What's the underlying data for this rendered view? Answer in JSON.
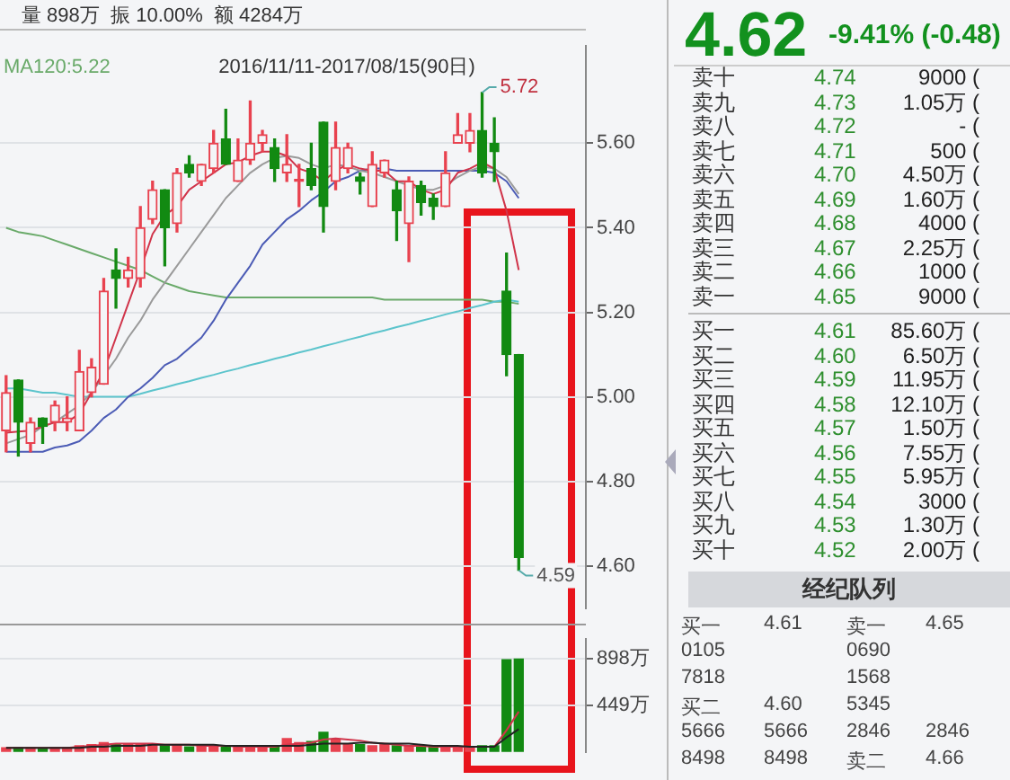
{
  "chart_data": [
    {
      "type": "candlestick",
      "title": "2016/11/11-2017/08/15(90日)",
      "annotations": [
        "量 898万  振 10.00%  额 4284万",
        "5.72",
        "4.59"
      ],
      "categories": [
        null,
        null,
        null,
        null,
        null,
        null,
        null,
        null,
        null,
        null,
        null,
        null,
        null,
        null,
        null,
        null,
        null,
        null,
        null,
        null,
        null,
        null,
        null,
        null,
        null,
        null,
        null,
        null,
        null,
        null,
        null,
        null,
        null,
        null,
        null,
        null,
        null,
        null,
        null,
        null,
        null,
        null,
        null,
        null,
        null,
        null,
        null,
        null
      ],
      "ohlc": [
        [
          4.92,
          5.05,
          4.87,
          5.01
        ],
        [
          5.04,
          5.04,
          4.86,
          4.94
        ],
        [
          4.89,
          4.95,
          4.87,
          4.94
        ],
        [
          4.95,
          4.95,
          4.89,
          4.93
        ],
        [
          4.94,
          4.99,
          4.92,
          4.98
        ],
        [
          4.94,
          5.0,
          4.92,
          4.95
        ],
        [
          4.92,
          5.11,
          4.92,
          5.06
        ],
        [
          5.01,
          5.09,
          5.0,
          5.07
        ],
        [
          5.03,
          5.28,
          5.03,
          5.25
        ],
        [
          5.3,
          5.35,
          5.21,
          5.28
        ],
        [
          5.28,
          5.33,
          5.26,
          5.3
        ],
        [
          5.28,
          5.45,
          5.26,
          5.4
        ],
        [
          5.42,
          5.51,
          5.41,
          5.49
        ],
        [
          5.49,
          5.49,
          5.31,
          5.4
        ],
        [
          5.41,
          5.54,
          5.39,
          5.53
        ],
        [
          5.55,
          5.57,
          5.52,
          5.53
        ],
        [
          5.51,
          5.55,
          5.5,
          5.55
        ],
        [
          5.54,
          5.63,
          5.53,
          5.6
        ],
        [
          5.61,
          5.68,
          5.55,
          5.55
        ],
        [
          5.51,
          5.61,
          5.51,
          5.56
        ],
        [
          5.56,
          5.7,
          5.55,
          5.6
        ],
        [
          5.6,
          5.63,
          5.58,
          5.62
        ],
        [
          5.59,
          5.61,
          5.51,
          5.54
        ],
        [
          5.53,
          5.62,
          5.51,
          5.55
        ],
        [
          5.51,
          5.55,
          5.45,
          5.51
        ],
        [
          5.54,
          5.6,
          5.49,
          5.5
        ],
        [
          5.65,
          5.65,
          5.39,
          5.45
        ],
        [
          5.51,
          5.65,
          5.49,
          5.59
        ],
        [
          5.54,
          5.6,
          5.53,
          5.59
        ],
        [
          5.52,
          5.53,
          5.48,
          5.51
        ],
        [
          5.45,
          5.58,
          5.45,
          5.55
        ],
        [
          5.53,
          5.56,
          5.52,
          5.56
        ],
        [
          5.49,
          5.51,
          5.37,
          5.44
        ],
        [
          5.41,
          5.52,
          5.32,
          5.51
        ],
        [
          5.5,
          5.51,
          5.43,
          5.46
        ],
        [
          5.47,
          5.48,
          5.42,
          5.45
        ],
        [
          5.45,
          5.58,
          5.45,
          5.53
        ],
        [
          5.6,
          5.67,
          5.6,
          5.62
        ],
        [
          5.6,
          5.67,
          5.58,
          5.63
        ],
        [
          5.63,
          5.72,
          5.52,
          5.53
        ],
        [
          5.6,
          5.66,
          5.51,
          5.58
        ],
        [
          5.25,
          5.34,
          5.05,
          5.1
        ],
        [
          5.1,
          5.1,
          4.59,
          4.62
        ],
        null,
        null,
        null,
        null,
        null
      ],
      "colors": [
        "#e8424f",
        "#128a12",
        "#e8424f",
        "#128a12",
        "#e8424f",
        "#e8424f",
        "#e8424f",
        "#e8424f",
        "#e8424f",
        "#128a12",
        "#e8424f",
        "#e8424f",
        "#e8424f",
        "#128a12",
        "#e8424f",
        "#128a12",
        "#e8424f",
        "#e8424f",
        "#128a12",
        "#e8424f",
        "#e8424f",
        "#e8424f",
        "#128a12",
        "#e8424f",
        "#e8424f",
        "#128a12",
        "#128a12",
        "#e8424f",
        "#e8424f",
        "#128a12",
        "#e8424f",
        "#e8424f",
        "#128a12",
        "#e8424f",
        "#128a12",
        "#128a12",
        "#e8424f",
        "#e8424f",
        "#e8424f",
        "#128a12",
        "#128a12",
        "#128a12",
        "#128a12",
        null,
        null,
        null,
        null,
        null
      ],
      "series": [
        {
          "type": "line",
          "color": "#d0344a",
          "values": [
            4.915,
            4.918,
            4.92,
            4.93,
            4.94,
            4.94,
            4.96,
            5.01,
            5.06,
            5.14,
            5.22,
            5.3,
            5.385,
            5.43,
            5.45,
            5.49,
            5.51,
            5.53,
            5.55,
            5.555,
            5.57,
            5.58,
            5.58,
            5.57,
            5.54,
            5.53,
            5.51,
            5.535,
            5.55,
            5.54,
            5.535,
            5.535,
            5.51,
            5.51,
            5.49,
            5.48,
            5.49,
            5.53,
            5.54,
            5.555,
            5.54,
            5.44,
            5.3,
            null,
            null,
            null,
            null,
            null
          ]
        },
        {
          "type": "line",
          "color": "#9a9a9a",
          "values": [
            4.89,
            4.9,
            4.91,
            4.93,
            4.94,
            4.96,
            4.98,
            5.01,
            5.05,
            5.09,
            5.14,
            5.18,
            5.23,
            5.27,
            5.31,
            5.35,
            5.39,
            5.43,
            5.47,
            5.5,
            5.53,
            5.55,
            5.565,
            5.57,
            5.565,
            5.55,
            5.54,
            5.55,
            5.545,
            5.535,
            5.53,
            5.52,
            5.51,
            5.5,
            5.49,
            5.49,
            5.5,
            5.52,
            5.535,
            5.545,
            5.54,
            5.52,
            5.48,
            null,
            null,
            null,
            null,
            null
          ]
        },
        {
          "type": "line",
          "color": "#4b5bb5",
          "values": [
            4.87,
            4.87,
            4.87,
            4.87,
            4.88,
            4.885,
            4.895,
            4.92,
            4.95,
            4.97,
            5.0,
            5.02,
            5.045,
            5.075,
            5.09,
            5.115,
            5.14,
            5.18,
            5.23,
            5.27,
            5.31,
            5.36,
            5.39,
            5.42,
            5.44,
            5.465,
            5.485,
            5.51,
            5.52,
            5.535,
            5.54,
            5.54,
            5.535,
            5.535,
            5.535,
            5.535,
            5.535,
            5.535,
            5.535,
            5.535,
            5.53,
            5.51,
            5.47,
            null,
            null,
            null,
            null,
            null
          ]
        },
        {
          "type": "line",
          "color": "#5cc4cc",
          "values": [
            5.02,
            5.02,
            5.015,
            5.01,
            5.01,
            5.005,
            5.0,
            5.0,
            5.0,
            5.0,
            5.0,
            5.007,
            5.015,
            5.022,
            5.03,
            5.037,
            5.045,
            5.052,
            5.06,
            5.067,
            5.075,
            5.082,
            5.09,
            5.097,
            5.105,
            5.112,
            5.12,
            5.127,
            5.135,
            5.142,
            5.15,
            5.157,
            5.165,
            5.172,
            5.18,
            5.187,
            5.195,
            5.202,
            5.21,
            5.217,
            5.225,
            5.23,
            5.225,
            null,
            null,
            null,
            null,
            null
          ]
        },
        {
          "type": "line",
          "name": "MA120:5.22",
          "color": "#6aaa6a",
          "values": [
            5.4,
            5.39,
            5.385,
            5.38,
            5.37,
            5.36,
            5.35,
            5.34,
            5.33,
            5.32,
            5.31,
            5.3,
            5.285,
            5.27,
            5.26,
            5.25,
            5.245,
            5.24,
            5.235,
            5.235,
            5.235,
            5.235,
            5.235,
            5.235,
            5.235,
            5.235,
            5.235,
            5.235,
            5.235,
            5.235,
            5.235,
            5.23,
            5.23,
            5.23,
            5.23,
            5.23,
            5.23,
            5.23,
            5.23,
            5.23,
            5.225,
            5.225,
            5.22,
            null,
            null,
            null,
            null,
            null
          ]
        }
      ],
      "ylim": [
        4.5,
        5.83
      ],
      "yticks": [
        {
          "value": 4.6,
          "label": "4.60"
        },
        {
          "value": 4.8,
          "label": "4.80"
        },
        {
          "value": 5.0,
          "label": "5.00"
        },
        {
          "value": 5.2,
          "label": "5.20"
        },
        {
          "value": 5.4,
          "label": "5.40"
        },
        {
          "value": 5.6,
          "label": "5.60"
        }
      ],
      "grid": "y",
      "legend": "top left",
      "tick_labels": "y",
      "marker": "none"
    },
    {
      "type": "bar",
      "categories": [
        null,
        null,
        null,
        null,
        null,
        null,
        null,
        null,
        null,
        null,
        null,
        null,
        null,
        null,
        null,
        null,
        null,
        null,
        null,
        null,
        null,
        null,
        null,
        null,
        null,
        null,
        null,
        null,
        null,
        null,
        null,
        null,
        null,
        null,
        null,
        null,
        null,
        null,
        null,
        null,
        null,
        null,
        null,
        null,
        null,
        null,
        null,
        null
      ],
      "values": [
        40,
        40,
        40,
        30,
        40,
        40,
        60,
        70,
        90,
        70,
        80,
        80,
        70,
        60,
        70,
        50,
        60,
        60,
        50,
        50,
        50,
        60,
        60,
        130,
        90,
        100,
        190,
        120,
        80,
        70,
        60,
        70,
        60,
        60,
        50,
        50,
        60,
        50,
        50,
        60,
        60,
        890,
        898,
        null,
        null,
        null,
        null,
        null
      ],
      "colors": [
        "#e8424f",
        "#128a12",
        "#e8424f",
        "#128a12",
        "#e8424f",
        "#e8424f",
        "#e8424f",
        "#e8424f",
        "#e8424f",
        "#128a12",
        "#e8424f",
        "#e8424f",
        "#e8424f",
        "#128a12",
        "#e8424f",
        "#128a12",
        "#e8424f",
        "#e8424f",
        "#128a12",
        "#e8424f",
        "#e8424f",
        "#e8424f",
        "#128a12",
        "#e8424f",
        "#e8424f",
        "#128a12",
        "#128a12",
        "#e8424f",
        "#e8424f",
        "#128a12",
        "#e8424f",
        "#e8424f",
        "#128a12",
        "#e8424f",
        "#128a12",
        "#128a12",
        "#e8424f",
        "#e8424f",
        "#e8424f",
        "#128a12",
        "#128a12",
        "#128a12",
        "#128a12",
        null,
        null,
        null,
        null,
        null
      ],
      "series": [
        {
          "type": "line",
          "color": "#222222",
          "values": [
            40,
            40,
            40,
            40,
            40,
            40,
            40,
            50,
            50,
            60,
            60,
            60,
            70,
            70,
            70,
            70,
            70,
            70,
            60,
            60,
            60,
            60,
            60,
            60,
            60,
            70,
            80,
            80,
            80,
            90,
            90,
            80,
            80,
            80,
            70,
            60,
            60,
            60,
            50,
            50,
            50,
            140,
            220,
            null,
            null,
            null,
            null,
            null
          ]
        },
        {
          "type": "line",
          "color": "#d0344a",
          "values": [
            40,
            40,
            40,
            40,
            40,
            40,
            50,
            60,
            70,
            80,
            80,
            80,
            80,
            70,
            70,
            70,
            60,
            60,
            60,
            50,
            50,
            50,
            50,
            70,
            80,
            90,
            120,
            130,
            120,
            110,
            90,
            80,
            70,
            60,
            60,
            50,
            50,
            50,
            50,
            50,
            50,
            210,
            390,
            null,
            null,
            null,
            null,
            null
          ]
        }
      ],
      "ylim": [
        0,
        1090
      ],
      "yticks": [
        {
          "value": 449,
          "label": "449万"
        },
        {
          "value": 898,
          "label": "898万"
        }
      ],
      "grid": "y",
      "tick_labels": "y",
      "marker": "none"
    },
    {
      "type": "other",
      "title": "4.62",
      "subtitle": "-9.41% (-0.48)",
      "annotations": [
        "卖十",
        "4.74",
        "9000 (",
        "卖九",
        "4.73",
        "1.05万 (",
        "卖八",
        "4.72",
        "- (",
        "卖七",
        "4.71",
        "500 (",
        "卖六",
        "4.70",
        "4.50万 (",
        "卖五",
        "4.69",
        "1.60万 (",
        "卖四",
        "4.68",
        "4000 (",
        "卖三",
        "4.67",
        "2.25万 (",
        "卖二",
        "4.66",
        "1000 (",
        "卖一",
        "4.65",
        "9000 (",
        "买一",
        "4.61",
        "85.60万 (",
        "买二",
        "4.60",
        "6.50万 (",
        "买三",
        "4.59",
        "11.95万 (",
        "买四",
        "4.58",
        "12.10万 (",
        "买五",
        "4.57",
        "1.50万 (",
        "买六",
        "4.56",
        "7.55万 (",
        "买七",
        "4.55",
        "5.95万 (",
        "买八",
        "4.54",
        "3000 (",
        "买九",
        "4.53",
        "1.30万 (",
        "买十",
        "4.52",
        "2.00万 (",
        "经纪队列"
      ],
      "categories": [
        "买一",
        "4.61",
        "卖一",
        "4.65",
        "0105",
        null,
        "0690",
        null,
        "7818",
        null,
        "1568",
        null,
        "买二",
        "4.60",
        "5345",
        null,
        "5666",
        "5666",
        "2846",
        "2846",
        "8498",
        "8498",
        "卖二",
        "4.66"
      ]
    }
  ]
}
